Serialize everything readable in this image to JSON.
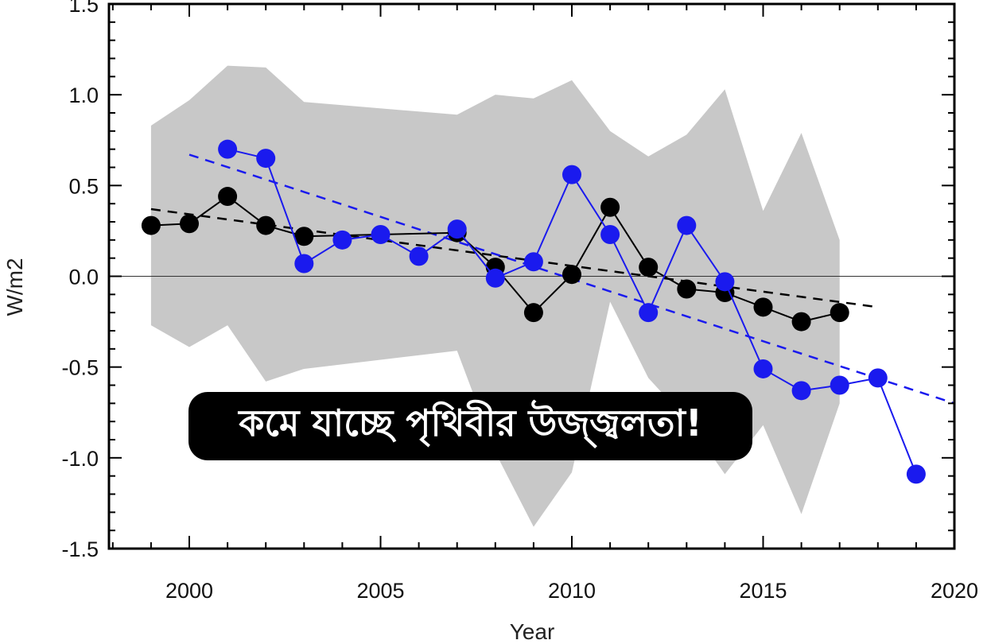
{
  "chart_data": {
    "type": "line",
    "xlabel": "Year",
    "ylabel": "W/m2",
    "xlim": [
      1997.9,
      2020
    ],
    "ylim": [
      -1.5,
      1.5
    ],
    "xticks": [
      2000,
      2005,
      2010,
      2015,
      2020
    ],
    "yticks": [
      1.5,
      1.0,
      0.5,
      0.0,
      -0.5,
      -1.0,
      -1.5
    ],
    "ytick_labels": [
      "1.5",
      "1.0",
      "0.5",
      "0.0",
      "-0.5",
      "-1.0",
      "-1.5"
    ],
    "zero_line": 0.0,
    "band": {
      "color": "#c8c8c8",
      "x": [
        1999,
        2000,
        2001,
        2002,
        2003,
        2007,
        2008,
        2009,
        2010,
        2011,
        2012,
        2013,
        2014,
        2015,
        2016,
        2017
      ],
      "upper": [
        0.83,
        0.97,
        1.16,
        1.15,
        0.96,
        0.89,
        1.0,
        0.98,
        1.08,
        0.8,
        0.66,
        0.78,
        1.03,
        0.36,
        0.79,
        0.2
      ],
      "lower": [
        -0.27,
        -0.39,
        -0.27,
        -0.58,
        -0.51,
        -0.41,
        -0.97,
        -1.38,
        -1.08,
        -0.14,
        -0.56,
        -0.79,
        -1.09,
        -0.82,
        -1.31,
        -0.7
      ]
    },
    "series": [
      {
        "color": "#000000",
        "x": [
          1999,
          2000,
          2001,
          2002,
          2003,
          2007,
          2008,
          2009,
          2010,
          2011,
          2012,
          2013,
          2014,
          2015,
          2016,
          2017
        ],
        "y": [
          0.28,
          0.29,
          0.44,
          0.28,
          0.22,
          0.24,
          0.05,
          -0.2,
          0.01,
          0.38,
          0.05,
          -0.07,
          -0.09,
          -0.17,
          -0.25,
          -0.2
        ]
      },
      {
        "color": "#1a1aee",
        "x": [
          2001,
          2002,
          2003,
          2004,
          2005,
          2006,
          2007,
          2008,
          2009,
          2010,
          2011,
          2012,
          2013,
          2014,
          2015,
          2016,
          2017,
          2018,
          2019
        ],
        "y": [
          0.7,
          0.65,
          0.07,
          0.2,
          0.23,
          0.11,
          0.26,
          -0.01,
          0.08,
          0.56,
          0.23,
          -0.2,
          0.28,
          -0.03,
          -0.51,
          -0.63,
          -0.6,
          -0.56,
          -1.09
        ]
      }
    ],
    "trends": [
      {
        "color": "#000000",
        "x": [
          1999,
          2018
        ],
        "y": [
          0.37,
          -0.17
        ]
      },
      {
        "color": "#1a1aee",
        "x": [
          2000,
          2020
        ],
        "y": [
          0.67,
          -0.7
        ]
      }
    ]
  },
  "banner": {
    "text": "কমে যাচ্ছে পৃথিবীর উজ্জ্বলতা!"
  }
}
